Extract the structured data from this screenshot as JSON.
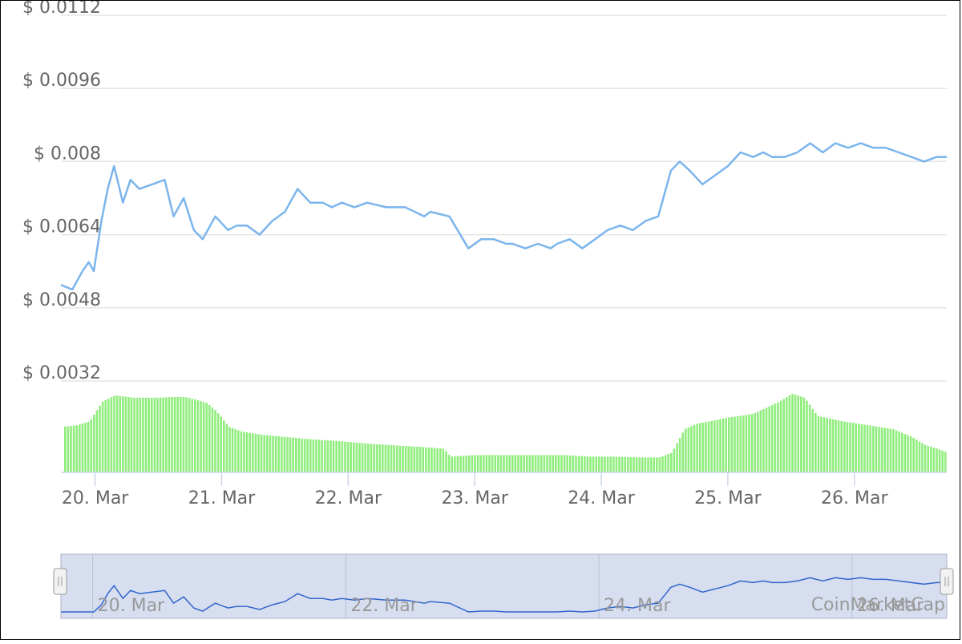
{
  "chart_data": {
    "type": "line",
    "title": "",
    "xlabel": "",
    "ylabel": "",
    "y_tick_labels": [
      "$ 0.0112",
      "$ 0.0096",
      "$ 0.008",
      "$ 0.0064",
      "$ 0.0048",
      "$ 0.0032"
    ],
    "y_tick_values": [
      0.0112,
      0.0096,
      0.008,
      0.0064,
      0.0048,
      0.0032
    ],
    "ylim": [
      0.0032,
      0.0112
    ],
    "x_tick_labels": [
      "20. Mar",
      "21. Mar",
      "22. Mar",
      "23. Mar",
      "24. Mar",
      "25. Mar",
      "26. Mar"
    ],
    "xlim_days": [
      19.73,
      26.73
    ],
    "grid": true,
    "colors": {
      "price_line": "#7cb5ec",
      "volume_bars": "#90ed7d",
      "navigator_line": "#3366cc",
      "navigator_fill": "#d6deef",
      "grid": "#e6e6e6",
      "axis_text": "#666666"
    },
    "series": [
      {
        "x": [
          19.73,
          19.82,
          19.9,
          19.95,
          19.99,
          20.05,
          20.1,
          20.15,
          20.22,
          20.28,
          20.35,
          20.45,
          20.55,
          20.62,
          20.7,
          20.78,
          20.85,
          20.95,
          21.05,
          21.12,
          21.2,
          21.3,
          21.4,
          21.5,
          21.6,
          21.7,
          21.8,
          21.87,
          21.95,
          22.05,
          22.15,
          22.3,
          22.45,
          22.6,
          22.65,
          22.8,
          22.95,
          23.05,
          23.15,
          23.25,
          23.3,
          23.4,
          23.5,
          23.6,
          23.65,
          23.75,
          23.85,
          23.95,
          24.0,
          24.05,
          24.15,
          24.25,
          24.35,
          24.45,
          24.55,
          24.62,
          24.7,
          24.8,
          24.9,
          25.0,
          25.1,
          25.2,
          25.28,
          25.35,
          25.45,
          25.55,
          25.65,
          25.75,
          25.85,
          25.95,
          26.05,
          26.15,
          26.25,
          26.35,
          26.45,
          26.55,
          26.65,
          26.73
        ],
        "values": [
          0.0053,
          0.0052,
          0.0056,
          0.0058,
          0.0056,
          0.0067,
          0.0074,
          0.0079,
          0.0071,
          0.0076,
          0.0074,
          0.0075,
          0.0076,
          0.0068,
          0.0072,
          0.0065,
          0.0063,
          0.0068,
          0.0065,
          0.0066,
          0.0066,
          0.0064,
          0.0067,
          0.0069,
          0.0074,
          0.0071,
          0.0071,
          0.007,
          0.0071,
          0.007,
          0.0071,
          0.007,
          0.007,
          0.0068,
          0.0069,
          0.0068,
          0.0061,
          0.0063,
          0.0063,
          0.0062,
          0.0062,
          0.0061,
          0.0062,
          0.0061,
          0.0062,
          0.0063,
          0.0061,
          0.0063,
          0.0064,
          0.0065,
          0.0066,
          0.0065,
          0.0067,
          0.0068,
          0.0078,
          0.008,
          0.0078,
          0.0075,
          0.0077,
          0.0079,
          0.0082,
          0.0081,
          0.0082,
          0.0081,
          0.0081,
          0.0082,
          0.0084,
          0.0082,
          0.0084,
          0.0083,
          0.0084,
          0.0083,
          0.0083,
          0.0082,
          0.0081,
          0.008,
          0.0081,
          0.0081
        ]
      },
      {
        "x": [
          19.73,
          19.85,
          19.95,
          20.05,
          20.15,
          20.3,
          20.5,
          20.6,
          20.7,
          20.8,
          20.88,
          20.95,
          21.05,
          21.15,
          21.3,
          21.5,
          21.7,
          21.9,
          22.05,
          22.2,
          22.4,
          22.6,
          22.75,
          22.8,
          23.0,
          23.3,
          23.5,
          23.7,
          23.9,
          24.1,
          24.3,
          24.45,
          24.55,
          24.65,
          24.75,
          24.85,
          25.0,
          25.1,
          25.2,
          25.4,
          25.5,
          25.6,
          25.7,
          25.9,
          26.1,
          26.3,
          26.45,
          26.55,
          26.65,
          26.73
        ],
        "values": [
          0.58,
          0.6,
          0.65,
          0.9,
          0.98,
          0.95,
          0.95,
          0.96,
          0.96,
          0.92,
          0.88,
          0.78,
          0.58,
          0.52,
          0.48,
          0.45,
          0.42,
          0.4,
          0.38,
          0.36,
          0.34,
          0.32,
          0.3,
          0.2,
          0.22,
          0.22,
          0.22,
          0.22,
          0.2,
          0.2,
          0.19,
          0.19,
          0.25,
          0.55,
          0.62,
          0.65,
          0.7,
          0.72,
          0.75,
          0.9,
          1.0,
          0.95,
          0.72,
          0.65,
          0.6,
          0.55,
          0.45,
          0.35,
          0.3,
          0.25
        ]
      }
    ]
  },
  "navigator": {
    "tick_labels": [
      "20. Mar",
      "22. Mar",
      "24. Mar",
      "26. Mar"
    ]
  },
  "watermark": "CoinMarketCap"
}
